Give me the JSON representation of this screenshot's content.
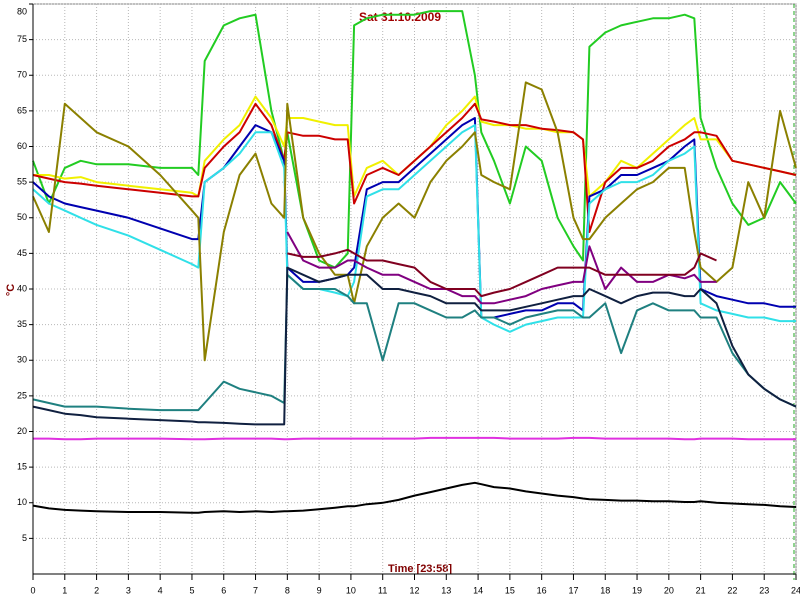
{
  "chart_data": {
    "type": "line",
    "title": "Sat  31.10.2009",
    "x_label": "Time [23:58]",
    "y_label": "°C",
    "xlim": [
      0,
      24
    ],
    "ylim": [
      0,
      80
    ],
    "xticks": [
      0,
      1,
      2,
      3,
      4,
      5,
      6,
      7,
      8,
      9,
      10,
      11,
      12,
      13,
      14,
      15,
      16,
      17,
      18,
      19,
      20,
      21,
      22,
      23,
      24
    ],
    "yticks": [
      5,
      10,
      15,
      20,
      25,
      30,
      35,
      40,
      45,
      50,
      55,
      60,
      65,
      70,
      75,
      80
    ],
    "grid": true,
    "x": [
      0,
      0.5,
      1,
      1.5,
      2,
      3,
      4,
      5,
      5.2,
      5.4,
      6,
      6.5,
      7,
      7.5,
      7.9,
      8,
      8.5,
      9,
      9.5,
      9.9,
      10.1,
      10.5,
      11,
      11.5,
      12,
      12.5,
      13,
      13.5,
      13.9,
      14.1,
      14.5,
      15,
      15.5,
      16,
      16.5,
      17,
      17.3,
      17.5,
      18,
      18.5,
      19,
      19.5,
      20,
      20.5,
      20.8,
      21,
      21.5,
      22,
      22.5,
      23,
      23.5,
      24
    ],
    "series": [
      {
        "color": "#000000",
        "values": [
          9.6,
          9.2,
          9,
          8.9,
          8.8,
          8.7,
          8.7,
          8.6,
          8.6,
          8.7,
          8.8,
          8.7,
          8.8,
          8.7,
          8.8,
          8.8,
          8.9,
          9.1,
          9.3,
          9.5,
          9.5,
          9.8,
          10,
          10.4,
          11,
          11.5,
          12,
          12.5,
          12.8,
          12.6,
          12.2,
          12,
          11.6,
          11.3,
          11,
          10.8,
          10.6,
          10.5,
          10.4,
          10.3,
          10.3,
          10.2,
          10.2,
          10.1,
          10.1,
          10.2,
          10,
          9.9,
          9.8,
          9.7,
          9.5,
          9.4
        ]
      },
      {
        "color": "#e030e0",
        "values": [
          19,
          19,
          18.9,
          18.9,
          19,
          19,
          19,
          18.9,
          18.9,
          18.9,
          19,
          19,
          19,
          19,
          18.9,
          18.9,
          19,
          19,
          19,
          19,
          19,
          19,
          19,
          19,
          19,
          19.1,
          19.1,
          19.1,
          19.1,
          19.1,
          19.1,
          19,
          19,
          19,
          19,
          19.1,
          19.1,
          19.1,
          19,
          19,
          19,
          19,
          19,
          18.9,
          18.9,
          19,
          19,
          19,
          18.9,
          18.9,
          18.9,
          18.9
        ]
      },
      {
        "color": "#22cc22",
        "values": [
          58,
          52,
          57,
          58,
          57.5,
          57.5,
          57,
          57,
          56,
          72,
          77,
          78,
          78.5,
          65,
          58,
          62,
          50,
          44,
          43,
          45,
          77,
          78,
          78.5,
          78.5,
          78.5,
          79,
          79,
          79,
          70,
          62,
          58,
          52,
          60,
          58,
          50,
          46,
          44,
          74,
          76,
          77,
          77.5,
          78,
          78,
          78.5,
          78,
          64,
          57,
          52,
          49,
          50,
          55,
          52
        ]
      },
      {
        "color": "#f0f000",
        "values": [
          56,
          56,
          55.5,
          55.7,
          55,
          54.5,
          54,
          53.5,
          53,
          58,
          61,
          63,
          67,
          64,
          60,
          64,
          64,
          63.5,
          63,
          63,
          53,
          57,
          58,
          56,
          58,
          60,
          63,
          65,
          67,
          63.5,
          63,
          63,
          62.5,
          62.5,
          62,
          62,
          61,
          53,
          55,
          58,
          57,
          59,
          61,
          63,
          64,
          61,
          61,
          58,
          57.5,
          57,
          56.5,
          56
        ]
      },
      {
        "color": "#cc0000",
        "values": [
          56,
          55.5,
          55,
          54.8,
          54.5,
          54,
          53.5,
          53,
          53,
          57,
          60,
          62,
          66,
          63,
          58,
          62,
          61.5,
          61.5,
          61,
          61,
          52,
          56,
          57,
          56,
          58,
          60,
          62,
          64,
          66,
          63.8,
          63.5,
          63,
          63,
          62.5,
          62.3,
          62,
          61,
          48,
          55,
          57,
          57,
          58,
          60,
          61,
          62,
          62,
          61.5,
          58,
          57.5,
          57,
          56.5,
          56
        ]
      },
      {
        "color": "#0000b0",
        "values": [
          55,
          53,
          52,
          51.5,
          51,
          50,
          48.5,
          47,
          47,
          55,
          57,
          60,
          63,
          62,
          58,
          43,
          41,
          41,
          41.5,
          42,
          43,
          54,
          55,
          55,
          57,
          59,
          61,
          63,
          64,
          36,
          36,
          36.5,
          37,
          37,
          38,
          38,
          37,
          53,
          54,
          56,
          56,
          57,
          58,
          60,
          61,
          40,
          39,
          38.5,
          38,
          38,
          37.5,
          37.5
        ]
      },
      {
        "color": "#30e0e8",
        "values": [
          54,
          52,
          51,
          50,
          49,
          47.5,
          45.5,
          43.5,
          43,
          55,
          57,
          59,
          62,
          62,
          57,
          42,
          40,
          40,
          39.5,
          39,
          41,
          53,
          54,
          54,
          56,
          58,
          60,
          62,
          63,
          36,
          35,
          34,
          35,
          35.5,
          36,
          36,
          36,
          52,
          54,
          55,
          55,
          56,
          58,
          59,
          60,
          38,
          37,
          36.5,
          36,
          36,
          35.5,
          35.5
        ]
      },
      {
        "color": "#8b8000",
        "values": [
          53,
          48,
          66,
          64,
          62,
          60,
          56,
          51,
          50,
          30,
          48,
          56,
          59,
          52,
          50,
          66,
          50,
          45,
          42,
          42,
          38,
          46,
          50,
          52,
          50,
          55,
          58,
          60,
          62,
          56,
          55,
          54,
          69,
          68,
          62,
          50,
          47,
          47,
          50,
          52,
          54,
          55,
          57,
          57,
          48,
          43,
          41,
          43,
          55,
          50,
          65,
          57
        ]
      },
      {
        "color": "#1f8080",
        "values": [
          24.5,
          24,
          23.5,
          23.5,
          23.5,
          23.2,
          23,
          23,
          23,
          24,
          27,
          26,
          25.5,
          25,
          24,
          42,
          40,
          40,
          40,
          39,
          38,
          38,
          30,
          38,
          38,
          37,
          36,
          36,
          37,
          36,
          36,
          35,
          36,
          36.5,
          37,
          37,
          36,
          36,
          38,
          31,
          37,
          38,
          37,
          37,
          37,
          36,
          36,
          31,
          28,
          26,
          24.5,
          23.5
        ]
      },
      {
        "color": "#102040",
        "values": [
          23.5,
          23,
          22.5,
          22.3,
          22,
          21.8,
          21.6,
          21.4,
          21.3,
          21.3,
          21.2,
          21.1,
          21,
          21,
          21,
          43,
          42,
          41,
          41.5,
          42,
          42,
          42,
          40,
          40,
          39.5,
          39,
          38,
          38,
          38,
          37,
          37,
          37,
          37.5,
          38,
          38.5,
          39,
          39,
          40,
          39,
          38,
          39,
          39.5,
          39.5,
          39,
          39,
          40,
          38,
          32,
          28,
          26,
          24.5,
          23.5
        ]
      },
      {
        "color": "#800080",
        "values": [
          null,
          null,
          null,
          null,
          null,
          null,
          null,
          null,
          null,
          null,
          null,
          null,
          null,
          null,
          null,
          48,
          44,
          43,
          43,
          44,
          44,
          43,
          42,
          42,
          41,
          40,
          40,
          39,
          39,
          38,
          38,
          38.5,
          39,
          40,
          40.5,
          41,
          41,
          46,
          40,
          43,
          41,
          41,
          42,
          41.5,
          42,
          41,
          41,
          null,
          null,
          null,
          null,
          null
        ]
      },
      {
        "color": "#800020",
        "values": [
          null,
          null,
          null,
          null,
          null,
          null,
          null,
          null,
          null,
          null,
          null,
          null,
          null,
          null,
          null,
          45,
          44.5,
          44.5,
          45,
          45.5,
          45,
          44,
          44,
          43.5,
          43,
          41,
          40,
          40,
          40,
          39,
          39.5,
          40,
          41,
          42,
          43,
          43,
          43,
          43,
          42,
          42,
          42,
          42,
          42,
          42,
          43,
          45,
          44,
          null,
          null,
          null,
          null,
          null
        ]
      }
    ]
  }
}
